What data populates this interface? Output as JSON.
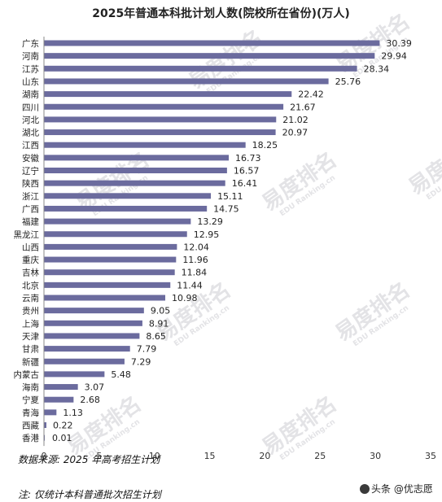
{
  "chart_data": {
    "type": "bar",
    "orientation": "horizontal",
    "title": "2025年普通本科批计划人数(院校所在省份)(万人)",
    "categories": [
      "广东",
      "河南",
      "江苏",
      "山东",
      "湖南",
      "四川",
      "河北",
      "湖北",
      "江西",
      "安徽",
      "辽宁",
      "陕西",
      "浙江",
      "广西",
      "福建",
      "黑龙江",
      "山西",
      "重庆",
      "吉林",
      "北京",
      "云南",
      "贵州",
      "上海",
      "天津",
      "甘肃",
      "新疆",
      "内蒙古",
      "海南",
      "宁夏",
      "青海",
      "西藏",
      "香港"
    ],
    "values": [
      30.39,
      29.94,
      28.34,
      25.76,
      22.42,
      21.67,
      21.02,
      20.97,
      18.25,
      16.73,
      16.57,
      16.41,
      15.11,
      14.75,
      13.29,
      12.95,
      12.04,
      11.96,
      11.84,
      11.44,
      10.98,
      9.05,
      8.91,
      8.65,
      7.79,
      7.29,
      5.48,
      3.07,
      2.68,
      1.13,
      0.22,
      0.01
    ],
    "value_labels": [
      "30.39",
      "29.94",
      "28.34",
      "25.76",
      "22.42",
      "21.67",
      "21.02",
      "20.97",
      "18.25",
      "16.73",
      "16.57",
      "16.41",
      "15.11",
      "14.75",
      "13.29",
      "12.95",
      "12.04",
      "11.96",
      "11.84",
      "11.44",
      "10.98",
      "9.05",
      "8.91",
      "8.65",
      "7.79",
      "7.29",
      "5.48",
      "3.07",
      "2.68",
      "1.13",
      "0.22",
      "0.01"
    ],
    "xlim": [
      0,
      35
    ],
    "x_ticks": [
      "0",
      "5",
      "10",
      "15",
      "20",
      "25",
      "30",
      "35"
    ],
    "bar_color": "#6b6b9e",
    "grid": false,
    "legend": "none"
  },
  "watermark": {
    "text": "易度排名",
    "subtext": "EDU Ranking.cn",
    "color": "#e3e3e6"
  },
  "notes": {
    "source": "数据来源: 2025 年高考招生计划",
    "footnote": "注: 仅统计本科普通批次招生计划"
  },
  "credit": {
    "text": "头条 @优志愿",
    "icon": "user-avatar-icon"
  }
}
